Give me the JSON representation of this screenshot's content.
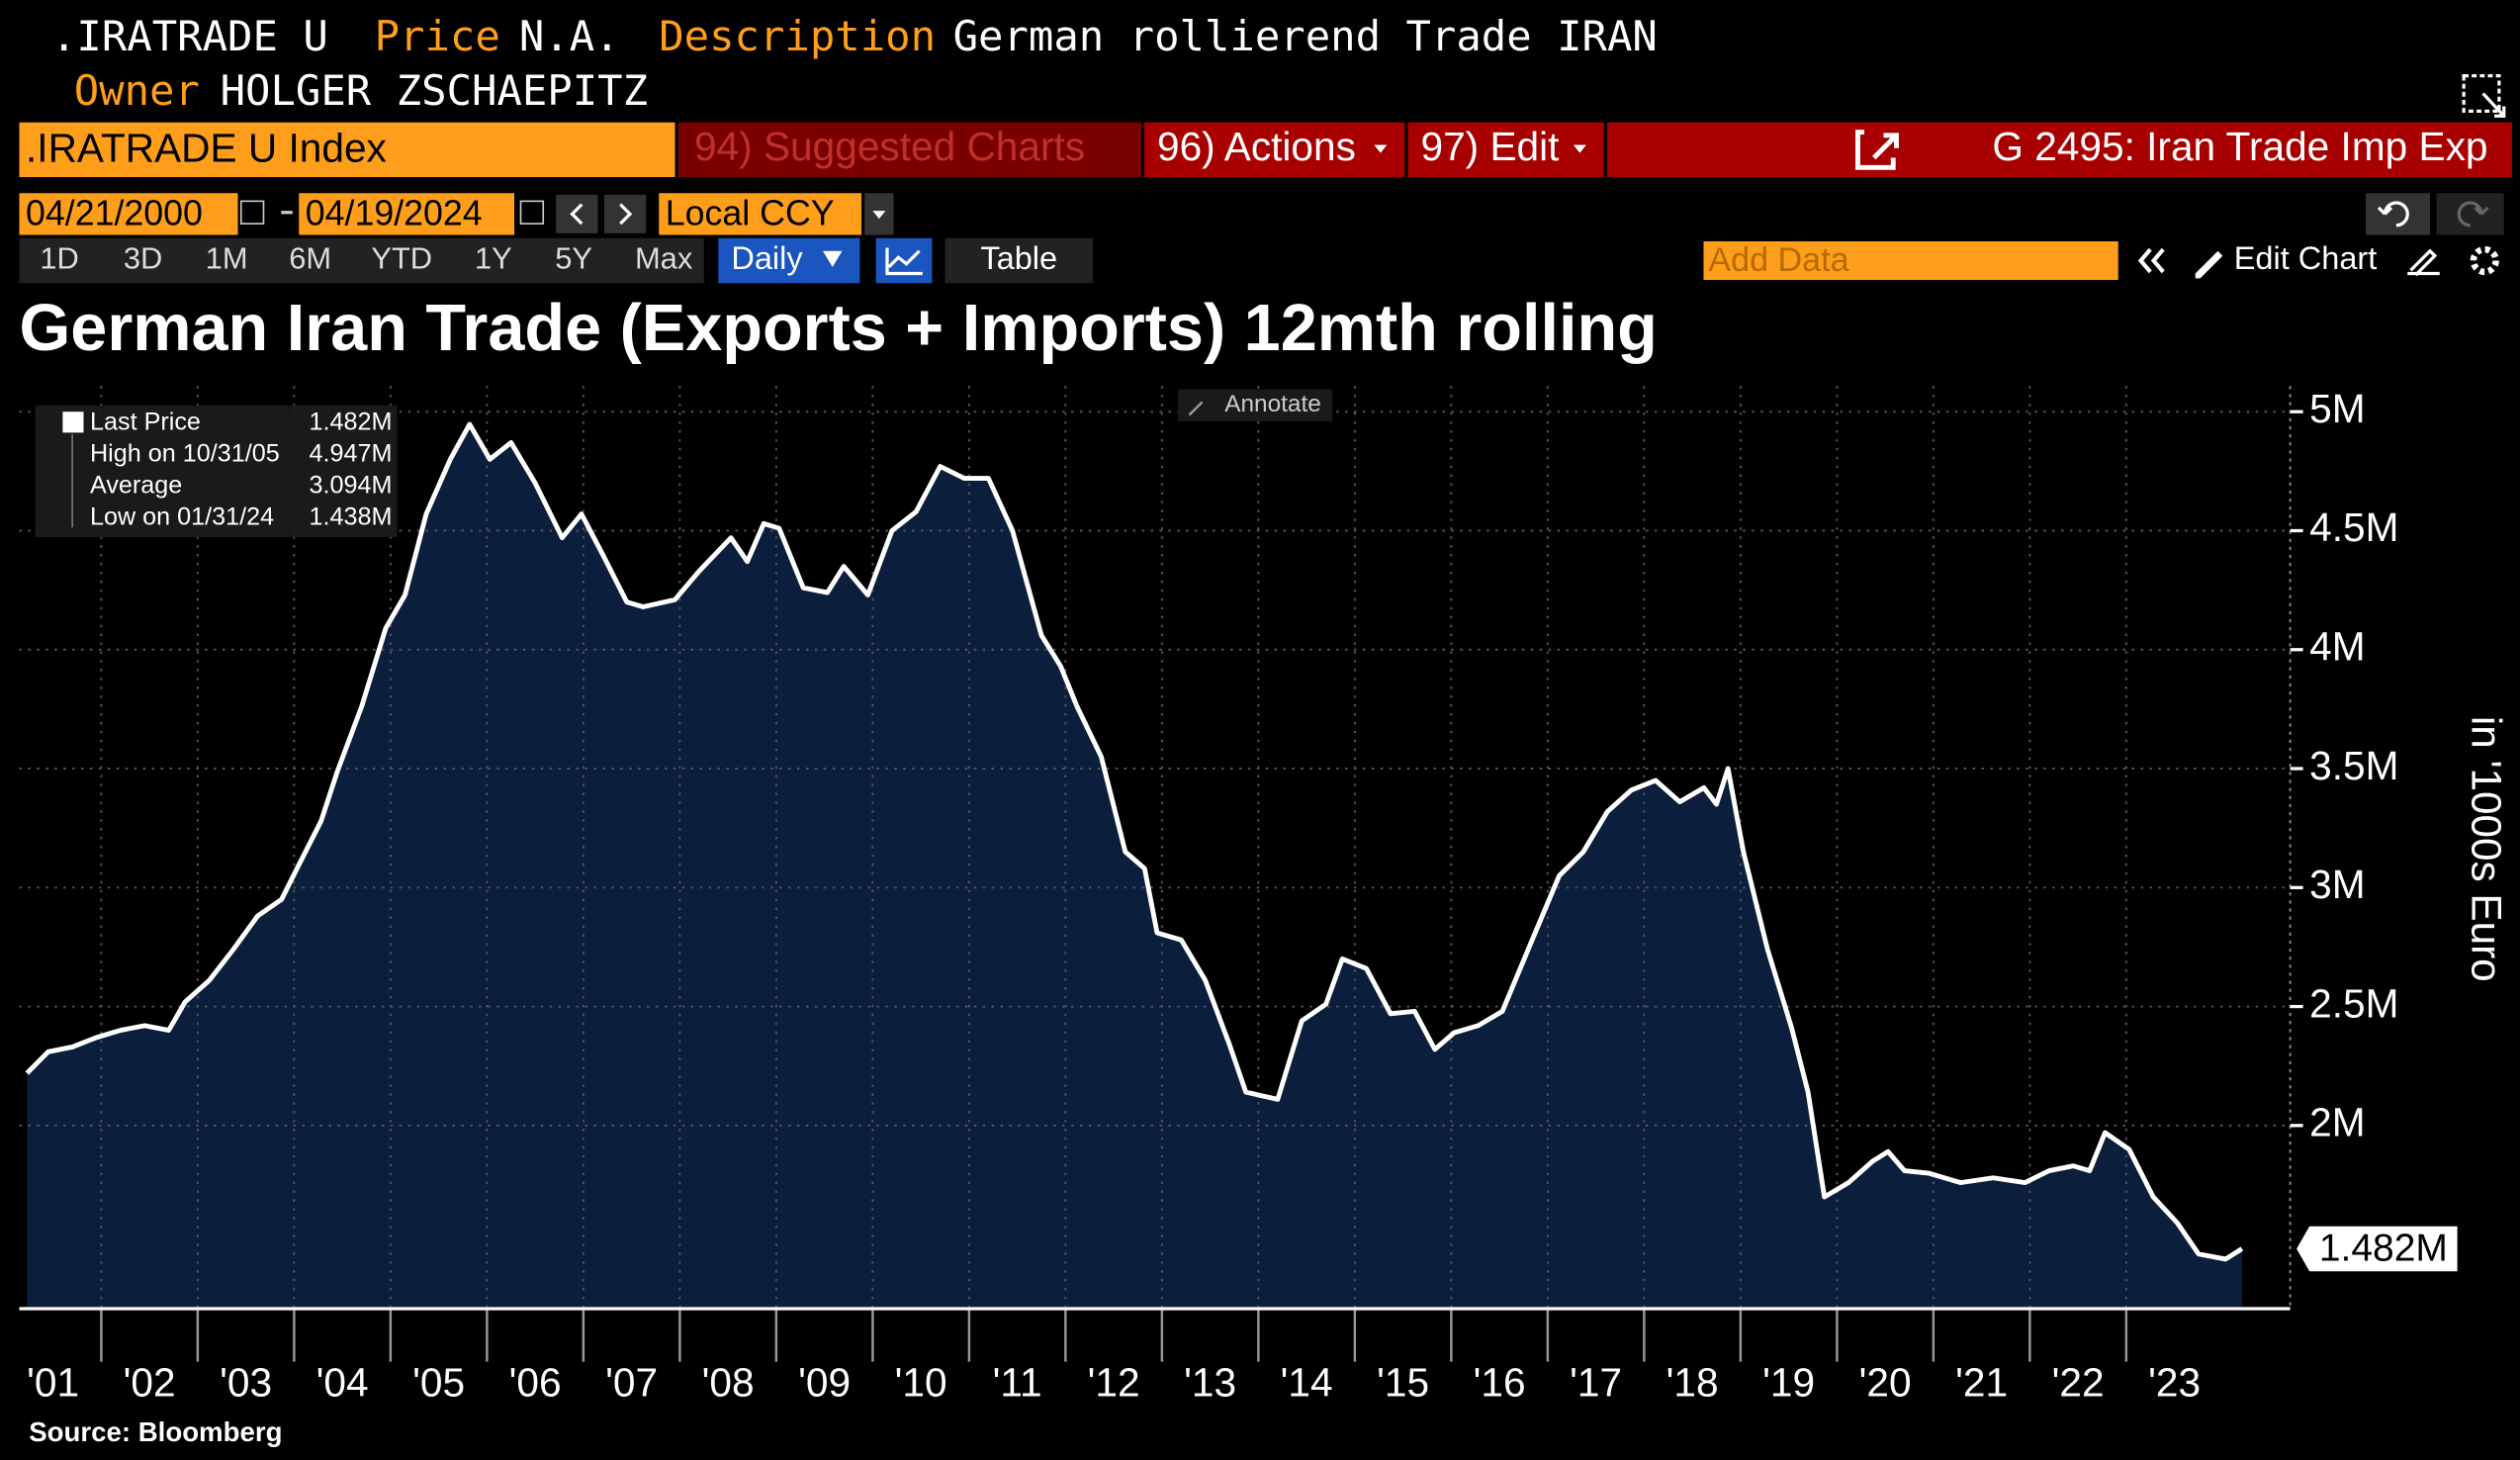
{
  "header": {
    "ticker": ".IRATRADE U",
    "price_label": "Price",
    "price": "N.A.",
    "description_label": "Description",
    "description": "German rollierend Trade IRAN",
    "owner_label": "Owner",
    "owner": "HOLGER ZSCHAEPITZ"
  },
  "toolbar": {
    "security": ".IRATRADE U Index",
    "suggested": "94) Suggested Charts",
    "actions": "96) Actions",
    "edit": "97) Edit",
    "chart_name": "G 2495: Iran Trade Imp Exp",
    "start_date": "04/21/2000",
    "end_date": "04/19/2024",
    "currency": "Local CCY",
    "ranges": [
      "1D",
      "3D",
      "1M",
      "6M",
      "YTD",
      "1Y",
      "5Y",
      "Max"
    ],
    "frequency": "Daily",
    "table": "Table",
    "add_data": "Add Data",
    "edit_chart": "Edit Chart",
    "annotate": "Annotate"
  },
  "chart_data": {
    "type": "area",
    "title": "German Iran Trade (Exports + Imports) 12mth rolling",
    "y_axis_label": "in '1000s Euro",
    "source": "Source: Bloomberg",
    "color": "#0b1e3b",
    "line_color": "#ffffff",
    "grid": true,
    "last_value_label": "1.482M",
    "legend": [
      {
        "label": "Last Price",
        "value": "1.482M"
      },
      {
        "label": "High on 10/31/05",
        "value": "4.947M"
      },
      {
        "label": "Average",
        "value": "3.094M"
      },
      {
        "label": "Low on 01/31/24",
        "value": "1.438M"
      }
    ],
    "x": [
      2001.23,
      2001.45,
      2001.7,
      2001.95,
      2002.2,
      2002.45,
      2002.7,
      2002.87,
      2003.12,
      2003.37,
      2003.62,
      2003.87,
      2004.03,
      2004.28,
      2004.45,
      2004.7,
      2004.95,
      2005.15,
      2005.37,
      2005.62,
      2005.82,
      2006.03,
      2006.25,
      2006.5,
      2006.78,
      2006.98,
      2007.2,
      2007.45,
      2007.62,
      2007.95,
      2008.2,
      2008.53,
      2008.7,
      2008.87,
      2009.03,
      2009.28,
      2009.53,
      2009.7,
      2009.95,
      2010.2,
      2010.45,
      2010.7,
      2010.95,
      2011.2,
      2011.45,
      2011.75,
      2011.95,
      2012.12,
      2012.37,
      2012.62,
      2012.82,
      2012.95,
      2013.2,
      2013.45,
      2013.7,
      2013.87,
      2014.2,
      2014.45,
      2014.7,
      2014.87,
      2015.12,
      2015.37,
      2015.62,
      2015.83,
      2016.03,
      2016.28,
      2016.53,
      2016.87,
      2017.12,
      2017.37,
      2017.62,
      2017.87,
      2018.12,
      2018.37,
      2018.62,
      2018.75,
      2018.87,
      2019.03,
      2019.28,
      2019.53,
      2019.7,
      2019.87,
      2020.12,
      2020.37,
      2020.53,
      2020.7,
      2020.95,
      2021.28,
      2021.62,
      2021.95,
      2022.2,
      2022.45,
      2022.62,
      2022.78,
      2023.03,
      2023.28,
      2023.53,
      2023.75,
      2024.03,
      2024.2
    ],
    "values": [
      2.22,
      2.31,
      2.33,
      2.37,
      2.4,
      2.42,
      2.4,
      2.52,
      2.61,
      2.74,
      2.88,
      2.95,
      3.08,
      3.28,
      3.49,
      3.76,
      4.09,
      4.23,
      4.57,
      4.8,
      4.947,
      4.8,
      4.87,
      4.7,
      4.47,
      4.57,
      4.4,
      4.2,
      4.18,
      4.21,
      4.33,
      4.47,
      4.37,
      4.53,
      4.51,
      4.26,
      4.24,
      4.35,
      4.23,
      4.5,
      4.58,
      4.77,
      4.72,
      4.72,
      4.5,
      4.06,
      3.93,
      3.76,
      3.55,
      3.15,
      3.08,
      2.81,
      2.78,
      2.61,
      2.34,
      2.14,
      2.11,
      2.44,
      2.51,
      2.7,
      2.66,
      2.47,
      2.48,
      2.32,
      2.39,
      2.42,
      2.48,
      2.81,
      3.05,
      3.15,
      3.32,
      3.41,
      3.45,
      3.36,
      3.42,
      3.35,
      3.5,
      3.15,
      2.74,
      2.41,
      2.14,
      1.7,
      1.76,
      1.85,
      1.89,
      1.81,
      1.8,
      1.76,
      1.78,
      1.76,
      1.81,
      1.83,
      1.81,
      1.97,
      1.9,
      1.7,
      1.59,
      1.46,
      1.438,
      1.482
    ],
    "xlim": [
      2001.15,
      2024.7
    ],
    "xticks": [
      {
        "value": 2001,
        "label": "'01"
      },
      {
        "value": 2002,
        "label": "'02"
      },
      {
        "value": 2003,
        "label": "'03"
      },
      {
        "value": 2004,
        "label": "'04"
      },
      {
        "value": 2005,
        "label": "'05"
      },
      {
        "value": 2006,
        "label": "'06"
      },
      {
        "value": 2007,
        "label": "'07"
      },
      {
        "value": 2008,
        "label": "'08"
      },
      {
        "value": 2009,
        "label": "'09"
      },
      {
        "value": 2010,
        "label": "'10"
      },
      {
        "value": 2011,
        "label": "'11"
      },
      {
        "value": 2012,
        "label": "'12"
      },
      {
        "value": 2013,
        "label": "'13"
      },
      {
        "value": 2014,
        "label": "'14"
      },
      {
        "value": 2015,
        "label": "'15"
      },
      {
        "value": 2016,
        "label": "'16"
      },
      {
        "value": 2017,
        "label": "'17"
      },
      {
        "value": 2018,
        "label": "'18"
      },
      {
        "value": 2019,
        "label": "'19"
      },
      {
        "value": 2020,
        "label": "'20"
      },
      {
        "value": 2021,
        "label": "'21"
      },
      {
        "value": 2022,
        "label": "'22"
      },
      {
        "value": 2023,
        "label": "'23"
      }
    ],
    "ylim": [
      1.237,
      5.108
    ],
    "yticks": [
      {
        "value": 2,
        "label": "2M"
      },
      {
        "value": 2.5,
        "label": "2.5M"
      },
      {
        "value": 3,
        "label": "3M"
      },
      {
        "value": 3.5,
        "label": "3.5M"
      },
      {
        "value": 4,
        "label": "4M"
      },
      {
        "value": 4.5,
        "label": "4.5M"
      },
      {
        "value": 5,
        "label": "5M"
      }
    ]
  }
}
